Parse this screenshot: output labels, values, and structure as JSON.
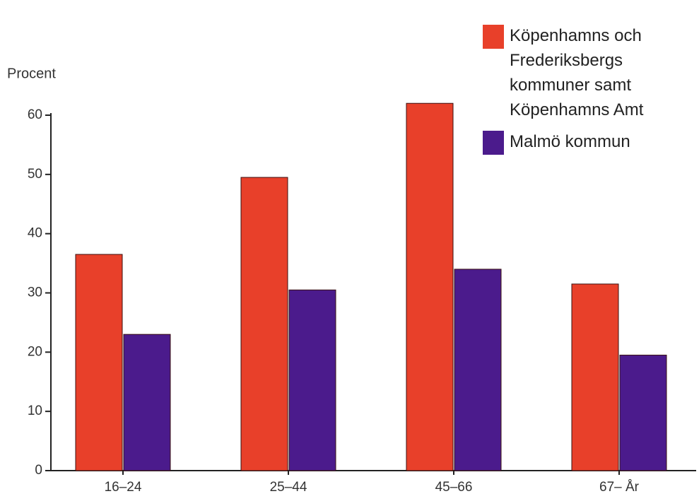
{
  "chart_data": {
    "type": "bar",
    "ylabel": "Procent",
    "categories": [
      "16–24",
      "25–44",
      "45–66",
      "67– År"
    ],
    "series": [
      {
        "name": "Köpenhamns och Frederiksbergs kommuner samt Köpenhamns Amt",
        "color": "#e8402a",
        "values": [
          36.5,
          49.5,
          62,
          31.5
        ]
      },
      {
        "name": "Malmö kommun",
        "color": "#4b1b8c",
        "values": [
          23,
          30.5,
          34,
          19.5
        ]
      }
    ],
    "ylim": [
      0,
      60
    ],
    "yticks": [
      0,
      10,
      20,
      30,
      40,
      50,
      60
    ],
    "legend": "upper right"
  }
}
